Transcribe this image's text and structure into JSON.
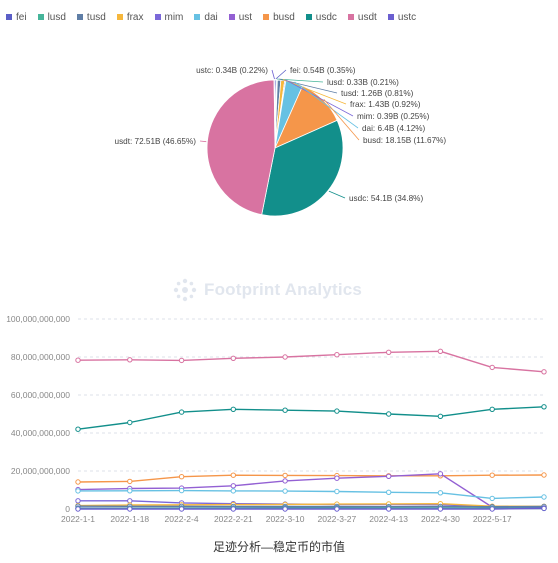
{
  "legend_items": [
    {
      "name": "fei",
      "color": "#5b5fc7"
    },
    {
      "name": "lusd",
      "color": "#46b59a"
    },
    {
      "name": "tusd",
      "color": "#5f7ea6"
    },
    {
      "name": "frax",
      "color": "#f6b73c"
    },
    {
      "name": "mim",
      "color": "#7b68d9"
    },
    {
      "name": "dai",
      "color": "#67c1e3"
    },
    {
      "name": "ust",
      "color": "#9360d3"
    },
    {
      "name": "busd",
      "color": "#f5964a"
    },
    {
      "name": "usdc",
      "color": "#128f8b"
    },
    {
      "name": "usdt",
      "color": "#d873a1"
    },
    {
      "name": "ustc",
      "color": "#6b5fd0"
    }
  ],
  "watermark": "Footprint Analytics",
  "caption": "足迹分析—稳定币的市值",
  "chart_data": [
    {
      "type": "pie",
      "slices": [
        {
          "name": "fei",
          "value": 0.54,
          "label": "fei: 0.54B (0.35%)",
          "color": "#5b5fc7"
        },
        {
          "name": "lusd",
          "value": 0.33,
          "label": "lusd: 0.33B (0.21%)",
          "color": "#46b59a"
        },
        {
          "name": "tusd",
          "value": 1.26,
          "label": "tusd: 1.26B (0.81%)",
          "color": "#5f7ea6"
        },
        {
          "name": "frax",
          "value": 1.43,
          "label": "frax: 1.43B (0.92%)",
          "color": "#f6b73c"
        },
        {
          "name": "mim",
          "value": 0.39,
          "label": "mim: 0.39B (0.25%)",
          "color": "#7b68d9"
        },
        {
          "name": "dai",
          "value": 6.4,
          "label": "dai: 6.4B (4.12%)",
          "color": "#67c1e3"
        },
        {
          "name": "busd",
          "value": 18.15,
          "label": "busd: 18.15B (11.67%)",
          "color": "#f5964a"
        },
        {
          "name": "usdc",
          "value": 54.1,
          "label": "usdc: 54.1B (34.8%)",
          "color": "#128f8b"
        },
        {
          "name": "usdt",
          "value": 72.51,
          "label": "usdt: 72.51B (46.65%)",
          "color": "#d873a1"
        },
        {
          "name": "ustc",
          "value": 0.34,
          "label": "ustc: 0.34B (0.22%)",
          "color": "#6b5fd0"
        }
      ]
    },
    {
      "type": "line",
      "x": [
        "2022-1-1",
        "2022-1-18",
        "2022-2-4",
        "2022-2-21",
        "2022-3-10",
        "2022-3-27",
        "2022-4-13",
        "2022-4-30",
        "2022-5-17",
        "2022-5-31"
      ],
      "x_tick_labels": [
        "2022-1-1",
        "2022-1-18",
        "2022-2-4",
        "2022-2-21",
        "2022-3-10",
        "2022-3-27",
        "2022-4-13",
        "2022-4-30",
        "2022-5-17"
      ],
      "ylim": [
        0,
        100000000000
      ],
      "y_ticks": [
        0,
        20000000000,
        40000000000,
        60000000000,
        80000000000,
        100000000000
      ],
      "y_tick_labels": [
        "0",
        "20,000,000,000",
        "40,000,000,000",
        "60,000,000,000",
        "80,000,000,000",
        "100,000,000,000"
      ],
      "grid": true,
      "series": [
        {
          "name": "usdt",
          "color": "#d873a1",
          "values": [
            78300000000,
            78500000000,
            78200000000,
            79300000000,
            80000000000,
            81200000000,
            82500000000,
            83000000000,
            74500000000,
            72200000000
          ]
        },
        {
          "name": "usdc",
          "color": "#128f8b",
          "values": [
            42000000000,
            45500000000,
            51000000000,
            52500000000,
            52000000000,
            51500000000,
            50000000000,
            48800000000,
            52500000000,
            53800000000
          ]
        },
        {
          "name": "busd",
          "color": "#f5964a",
          "values": [
            14200000000,
            14500000000,
            17000000000,
            17800000000,
            17700000000,
            17600000000,
            17500000000,
            17500000000,
            17800000000,
            17900000000
          ]
        },
        {
          "name": "ust",
          "color": "#9360d3",
          "values": [
            10200000000,
            10800000000,
            11000000000,
            12200000000,
            14800000000,
            16200000000,
            17200000000,
            18500000000,
            1000000000,
            800000000
          ]
        },
        {
          "name": "dai",
          "color": "#67c1e3",
          "values": [
            9500000000,
            9600000000,
            9700000000,
            9500000000,
            9400000000,
            9200000000,
            8800000000,
            8500000000,
            5600000000,
            6300000000
          ]
        },
        {
          "name": "mim",
          "color": "#7b68d9",
          "values": [
            4300000000,
            4300000000,
            3200000000,
            2800000000,
            2600000000,
            2400000000,
            2300000000,
            2300000000,
            900000000,
            400000000
          ]
        },
        {
          "name": "frax",
          "color": "#f6b73c",
          "values": [
            1800000000,
            2100000000,
            2200000000,
            2300000000,
            2400000000,
            2600000000,
            2700000000,
            2800000000,
            1500000000,
            1400000000
          ]
        },
        {
          "name": "tusd",
          "color": "#5f7ea6",
          "values": [
            1500000000,
            1400000000,
            1400000000,
            1300000000,
            1300000000,
            1300000000,
            1200000000,
            1300000000,
            1200000000,
            1300000000
          ]
        },
        {
          "name": "fei",
          "color": "#5b5fc7",
          "values": [
            500000000,
            500000000,
            600000000,
            600000000,
            700000000,
            700000000,
            600000000,
            600000000,
            600000000,
            550000000
          ]
        },
        {
          "name": "lusd",
          "color": "#46b59a",
          "values": [
            300000000,
            350000000,
            400000000,
            400000000,
            450000000,
            500000000,
            500000000,
            500000000,
            400000000,
            330000000
          ]
        },
        {
          "name": "ustc",
          "color": "#6b5fd0",
          "values": [
            0,
            0,
            0,
            0,
            0,
            0,
            0,
            0,
            0,
            340000000
          ]
        }
      ]
    }
  ]
}
